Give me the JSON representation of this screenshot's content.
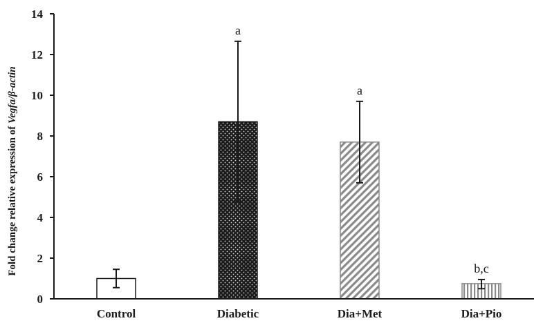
{
  "chart_data": {
    "type": "bar",
    "title": "",
    "xlabel": "",
    "ylabel": {
      "prefix": "Fold change relative expression of ",
      "italic": "Vegfa/β-actin"
    },
    "ylim": [
      0,
      14
    ],
    "yticks": [
      0,
      2,
      4,
      6,
      8,
      10,
      12,
      14
    ],
    "grid": false,
    "legend": "none",
    "categories": [
      "Control",
      "Diabetic",
      "Dia+Met",
      "Dia+Pio"
    ],
    "values": [
      1.0,
      8.7,
      7.7,
      0.75
    ],
    "error_low": [
      0.55,
      4.75,
      5.7,
      0.5
    ],
    "error_high": [
      1.45,
      12.65,
      9.7,
      0.95
    ],
    "significance": [
      "",
      "a",
      "a",
      "b,c"
    ],
    "patterns": [
      "white",
      "dotted-dark",
      "diagonal-hatch",
      "vertical-lines"
    ],
    "colors": {
      "axis": "#1a1a1a",
      "dark_fill": "#1c1c1c",
      "hatch": "#8a8a8a",
      "outline": "#1a1a1a"
    }
  }
}
